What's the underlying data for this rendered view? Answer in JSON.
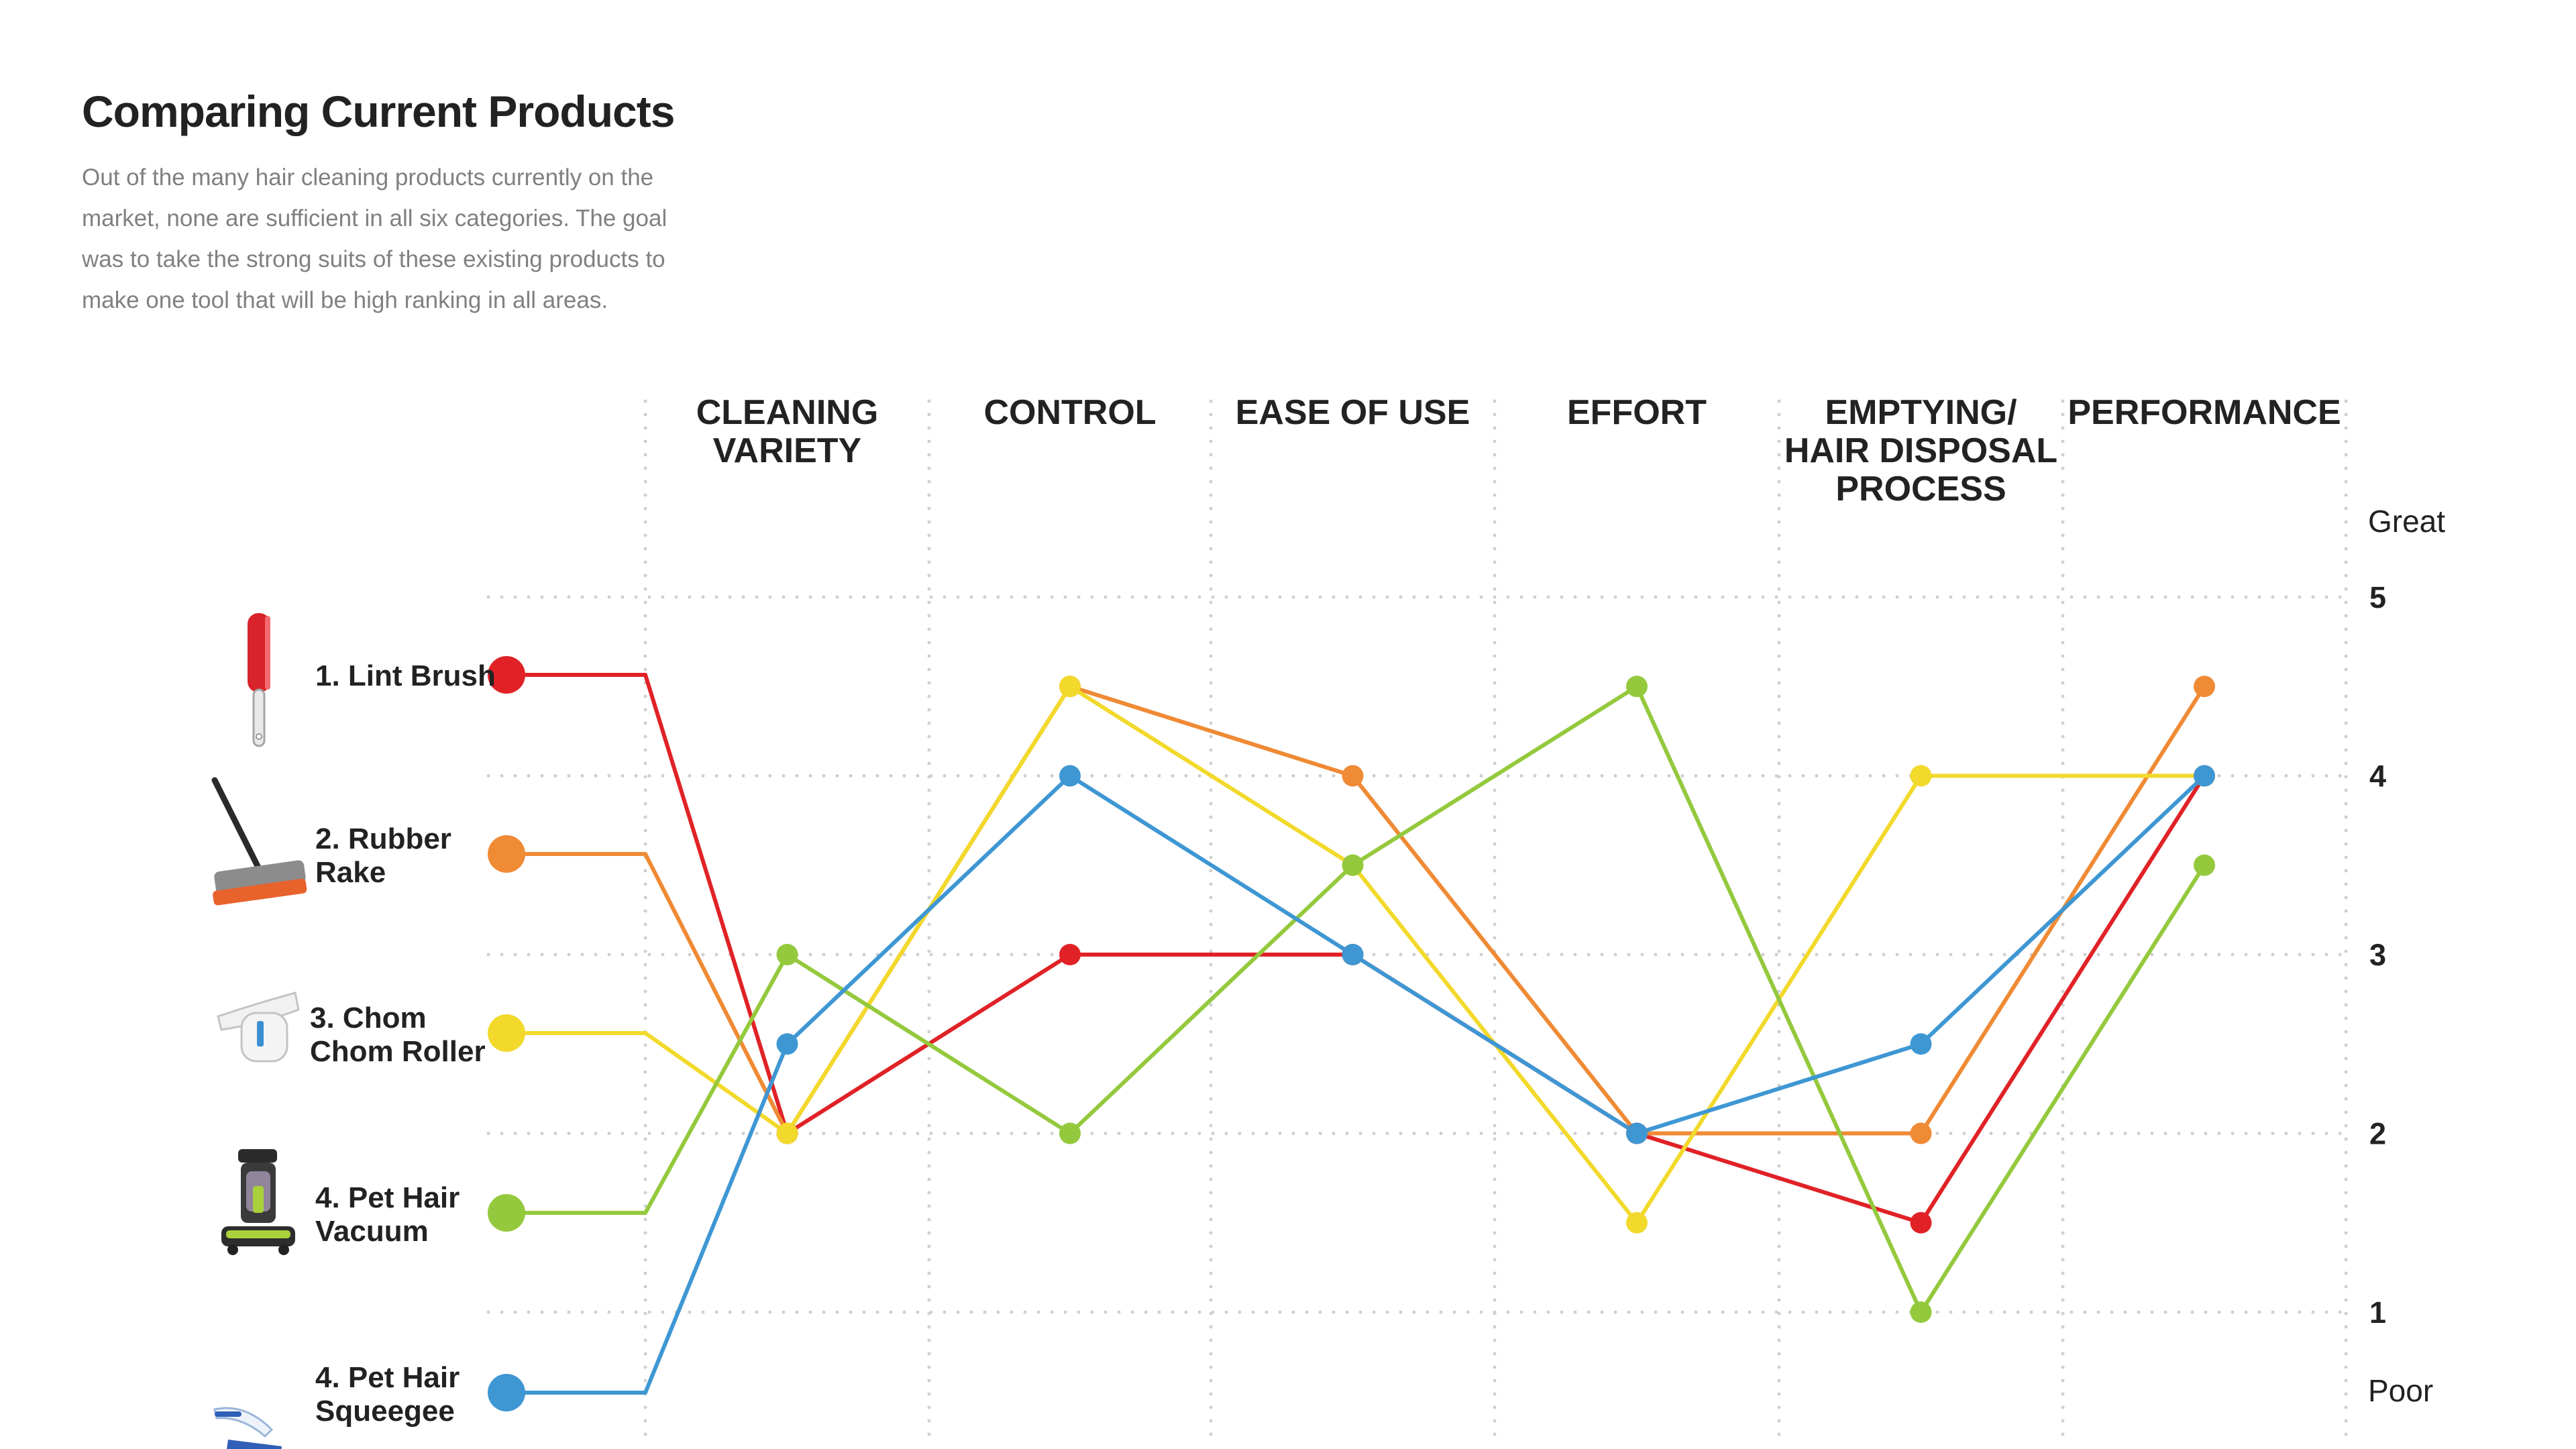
{
  "header": {
    "title": "Comparing Current Products",
    "description": "Out of the many hair cleaning products currently on the market, none are sufficient in all six categories. The goal was to take the strong suits of these existing products to make one tool that will be high ranking in all areas."
  },
  "chart_data": {
    "type": "line",
    "title": "Comparing Current Products",
    "categories": [
      "CLEANING VARIETY",
      "CONTROL",
      "EASE OF USE",
      "EFFORT",
      "EMPTYING/ HAIR DISPOSAL PROCESS",
      "PERFORMANCE"
    ],
    "category_lines": [
      [
        "CLEANING",
        "VARIETY"
      ],
      [
        "CONTROL"
      ],
      [
        "EASE OF USE"
      ],
      [
        "EFFORT"
      ],
      [
        "EMPTYING/",
        "HAIR DISPOSAL",
        "PROCESS"
      ],
      [
        "PERFORMANCE"
      ]
    ],
    "y_ticks": [
      "1",
      "2",
      "3",
      "4",
      "5"
    ],
    "y_top_label": "Great",
    "y_bottom_label": "Poor",
    "ylim": [
      1,
      5
    ],
    "grid": "dotted",
    "series": [
      {
        "name": "1. Lint Brush",
        "label_lines": [
          "1. Lint Brush"
        ],
        "icon": "lint-brush-icon",
        "color": "#e02226",
        "values": [
          2.0,
          3.0,
          3.0,
          2.0,
          1.5,
          4.0
        ]
      },
      {
        "name": "2. Rubber Rake",
        "label_lines": [
          "2. Rubber",
          "Rake"
        ],
        "icon": "rubber-rake-icon",
        "color": "#ef8a35",
        "values": [
          2.0,
          4.5,
          4.0,
          2.0,
          2.0,
          4.5
        ]
      },
      {
        "name": "3. Chom Chom Roller",
        "label_lines": [
          "3. Chom",
          "Chom Roller"
        ],
        "icon": "chom-chom-roller-icon",
        "color": "#f2d92b",
        "values": [
          2.0,
          4.5,
          3.5,
          1.5,
          4.0,
          4.0
        ]
      },
      {
        "name": "4. Pet Hair Vacuum",
        "label_lines": [
          "4. Pet Hair",
          "Vacuum"
        ],
        "icon": "pet-hair-vacuum-icon",
        "color": "#94c93d",
        "values": [
          3.0,
          2.0,
          3.5,
          4.5,
          1.0,
          3.5
        ]
      },
      {
        "name": "4. Pet Hair Squeegee",
        "label_lines": [
          "4. Pet Hair",
          "Squeegee"
        ],
        "icon": "pet-hair-squeegee-icon",
        "color": "#3e97d3",
        "values": [
          2.5,
          4.0,
          3.0,
          2.0,
          2.5,
          4.0
        ]
      }
    ]
  }
}
